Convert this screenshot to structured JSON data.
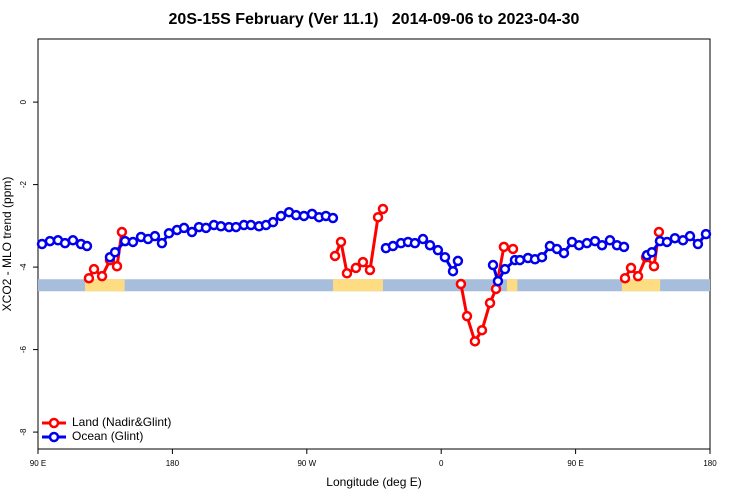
{
  "chart_data": {
    "type": "line",
    "title": "20S-15S February (Ver 11.1)   2014-09-06 to 2023-04-30",
    "x_label": "Longitude (deg E)",
    "y_label": "XCO2 - MLO trend (ppm)",
    "xlim": [
      90,
      540
    ],
    "ylim": [
      -8.41,
      1.53
    ],
    "xticks": [
      {
        "value": 90,
        "label": "90 E"
      },
      180,
      {
        "value": 270,
        "label": "90 W"
      },
      {
        "value": 360,
        "label": "0"
      },
      {
        "value": 450,
        "label": "90 E"
      },
      {
        "value": 540,
        "label": "180"
      }
    ],
    "yticks": [
      -8,
      -6,
      -4,
      -2,
      0
    ],
    "legend": "bottom-left",
    "surface_band": {
      "y": -4.44,
      "ocean_color": "#a7bddc",
      "land_color": "#fddc82",
      "land": [
        [
          121.5,
          148
        ],
        [
          287.6,
          321
        ],
        [
          404,
          411
        ],
        [
          481,
          506.6
        ]
      ]
    },
    "series": [
      {
        "name": "Land (Nadir&Glint)",
        "color": "#ff0000",
        "x": [
          124.1,
          127.5,
          132.9,
          138.2,
          142.9,
          146.2,
          null,
          288.9,
          292.9,
          296.9,
          302.9,
          307.6,
          312.3,
          317.7,
          321.0,
          null,
          373.2,
          377.3,
          382.6,
          387.3,
          392.7,
          396.7,
          402.0,
          null,
          408.1,
          null,
          483.1,
          487.1,
          491.8,
          497.2,
          502.5,
          505.8
        ],
        "values": [
          -4.27,
          -4.05,
          -4.22,
          -3.83,
          -3.98,
          -3.15,
          null,
          -3.73,
          -3.39,
          -4.15,
          -4.02,
          -3.88,
          -4.07,
          -2.79,
          -2.59,
          null,
          -4.41,
          -5.19,
          -5.8,
          -5.53,
          -4.87,
          -4.53,
          -3.51,
          null,
          -3.56,
          null,
          -4.27,
          -4.02,
          -4.22,
          -3.76,
          -3.98,
          -3.15
        ]
      },
      {
        "name": "Ocean (Glint)",
        "color": "#0000ee",
        "x": [
          92.7,
          98.0,
          103.4,
          108.1,
          113.4,
          118.8,
          122.8,
          null,
          138.2,
          141.6,
          148.3,
          153.6,
          159.0,
          163.7,
          168.3,
          173.0,
          177.7,
          183.1,
          187.8,
          193.1,
          197.8,
          202.5,
          207.8,
          212.5,
          217.9,
          222.6,
          227.9,
          232.6,
          238.0,
          242.7,
          247.4,
          252.7,
          258.1,
          262.8,
          268.1,
          273.5,
          278.2,
          282.8,
          287.5,
          null,
          323.0,
          327.7,
          333.1,
          337.8,
          342.4,
          347.8,
          352.5,
          357.8,
          362.5,
          367.9,
          371.2,
          null,
          394.7,
          398.0,
          402.7,
          409.4,
          412.7,
          418.1,
          422.8,
          427.5,
          432.8,
          437.5,
          442.2,
          447.6,
          452.3,
          457.6,
          463.0,
          467.7,
          473.0,
          477.7,
          482.4,
          null,
          497.8,
          501.1,
          506.5,
          511.2,
          516.5,
          521.9,
          526.6,
          531.9,
          537.3
        ],
        "values": [
          -3.44,
          -3.37,
          -3.35,
          -3.42,
          -3.35,
          -3.44,
          -3.49,
          null,
          -3.76,
          -3.64,
          -3.37,
          -3.39,
          -3.27,
          -3.32,
          -3.25,
          -3.42,
          -3.18,
          -3.1,
          -3.05,
          -3.15,
          -3.03,
          -3.05,
          -2.98,
          -3.01,
          -3.03,
          -3.03,
          -2.98,
          -2.98,
          -3.01,
          -2.98,
          -2.91,
          -2.76,
          -2.67,
          -2.74,
          -2.76,
          -2.71,
          -2.79,
          -2.76,
          -2.81,
          null,
          -3.54,
          -3.49,
          -3.42,
          -3.39,
          -3.42,
          -3.32,
          -3.47,
          -3.59,
          -3.76,
          -4.1,
          -3.85,
          null,
          -3.95,
          -4.34,
          -4.05,
          -3.83,
          -3.83,
          -3.78,
          -3.81,
          -3.76,
          -3.49,
          -3.56,
          -3.66,
          -3.39,
          -3.47,
          -3.42,
          -3.37,
          -3.47,
          -3.35,
          -3.47,
          -3.51,
          null,
          -3.71,
          -3.64,
          -3.37,
          -3.39,
          -3.3,
          -3.35,
          -3.25,
          -3.44,
          -3.2
        ]
      }
    ]
  }
}
